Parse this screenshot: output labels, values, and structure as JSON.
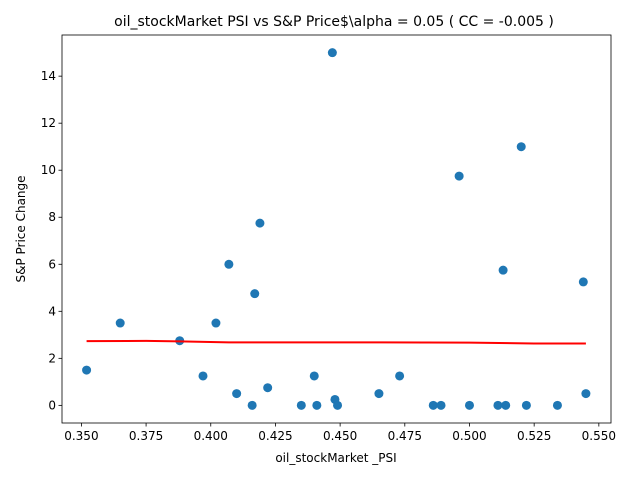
{
  "chart_data": {
    "type": "scatter",
    "title": "oil_stockMarket  PSI vs S&P Price$\\alpha = 0.05 ( CC = -0.005 )",
    "xlabel": "oil_stockMarket _PSI",
    "ylabel": "S&P Price Change",
    "xlim": [
      0.3425,
      0.5547
    ],
    "ylim": [
      -0.75,
      15.75
    ],
    "xticks": [
      0.35,
      0.375,
      0.4,
      0.425,
      0.45,
      0.475,
      0.5,
      0.525,
      0.55
    ],
    "xtick_labels": [
      "0.350",
      "0.375",
      "0.400",
      "0.425",
      "0.450",
      "0.475",
      "0.500",
      "0.525",
      "0.550"
    ],
    "yticks": [
      0,
      2,
      4,
      6,
      8,
      10,
      12,
      14
    ],
    "ytick_labels": [
      "0",
      "2",
      "4",
      "6",
      "8",
      "10",
      "12",
      "14"
    ],
    "grid": false,
    "colors": {
      "points": "#1f77b4",
      "trend": "#ff0000"
    },
    "points": [
      {
        "x": 0.352,
        "y": 1.5
      },
      {
        "x": 0.365,
        "y": 3.5
      },
      {
        "x": 0.388,
        "y": 2.75
      },
      {
        "x": 0.397,
        "y": 1.25
      },
      {
        "x": 0.402,
        "y": 3.5
      },
      {
        "x": 0.407,
        "y": 6.0
      },
      {
        "x": 0.41,
        "y": 0.5
      },
      {
        "x": 0.416,
        "y": 0.0
      },
      {
        "x": 0.417,
        "y": 4.75
      },
      {
        "x": 0.419,
        "y": 7.75
      },
      {
        "x": 0.422,
        "y": 0.75
      },
      {
        "x": 0.435,
        "y": 0.0
      },
      {
        "x": 0.44,
        "y": 1.25
      },
      {
        "x": 0.441,
        "y": 0.0
      },
      {
        "x": 0.447,
        "y": 15.0
      },
      {
        "x": 0.448,
        "y": 0.25
      },
      {
        "x": 0.449,
        "y": 0.0
      },
      {
        "x": 0.465,
        "y": 0.5
      },
      {
        "x": 0.473,
        "y": 1.25
      },
      {
        "x": 0.486,
        "y": 0.0
      },
      {
        "x": 0.489,
        "y": 0.0
      },
      {
        "x": 0.496,
        "y": 9.75
      },
      {
        "x": 0.5,
        "y": 0.0
      },
      {
        "x": 0.511,
        "y": 0.0
      },
      {
        "x": 0.513,
        "y": 5.75
      },
      {
        "x": 0.514,
        "y": 0.0
      },
      {
        "x": 0.52,
        "y": 11.0
      },
      {
        "x": 0.522,
        "y": 0.0
      },
      {
        "x": 0.534,
        "y": 0.0
      },
      {
        "x": 0.544,
        "y": 5.25
      },
      {
        "x": 0.545,
        "y": 0.5
      }
    ],
    "trend": [
      {
        "x": 0.352,
        "y": 2.73
      },
      {
        "x": 0.375,
        "y": 2.74
      },
      {
        "x": 0.388,
        "y": 2.72
      },
      {
        "x": 0.407,
        "y": 2.68
      },
      {
        "x": 0.45,
        "y": 2.68
      },
      {
        "x": 0.5,
        "y": 2.67
      },
      {
        "x": 0.525,
        "y": 2.63
      },
      {
        "x": 0.545,
        "y": 2.63
      }
    ]
  }
}
